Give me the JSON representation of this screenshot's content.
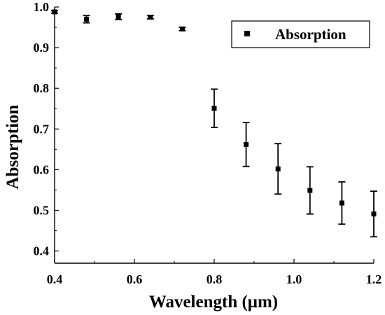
{
  "chart_data": {
    "type": "scatter",
    "xlabel": "Wavelength (μm)",
    "ylabel": "Absorption",
    "xlim": [
      0.4,
      1.2
    ],
    "ylim": [
      0.37,
      1.0
    ],
    "xticks": [
      0.4,
      0.6,
      0.8,
      1.0,
      1.2
    ],
    "xtick_labels": [
      "0.4",
      "0.6",
      "0.8",
      "1.0",
      "1.2"
    ],
    "yticks": [
      0.4,
      0.5,
      0.6,
      0.7,
      0.8,
      0.9,
      1.0
    ],
    "ytick_labels": [
      "0.4",
      "0.5",
      "0.6",
      "0.7",
      "0.8",
      "0.9",
      "1.0"
    ],
    "grid": false,
    "legend_position": "top-right",
    "series": [
      {
        "name": "Absorption",
        "marker": "square",
        "color": "#000000",
        "x": [
          0.4,
          0.48,
          0.56,
          0.64,
          0.72,
          0.8,
          0.88,
          0.96,
          1.04,
          1.12,
          1.2
        ],
        "y": [
          0.988,
          0.97,
          0.976,
          0.975,
          0.946,
          0.751,
          0.662,
          0.602,
          0.549,
          0.518,
          0.491
        ],
        "error": [
          0.003,
          0.009,
          0.007,
          0.004,
          0.004,
          0.047,
          0.054,
          0.062,
          0.058,
          0.052,
          0.056
        ]
      }
    ]
  }
}
